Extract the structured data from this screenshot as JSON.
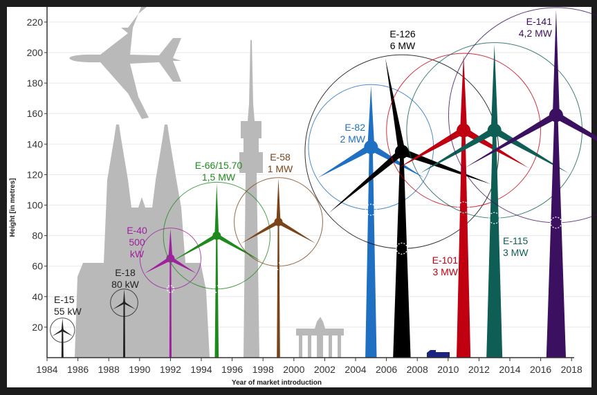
{
  "chart_data": {
    "type": "scatter",
    "title": "",
    "xlabel": "Year of market introduction",
    "ylabel": "Height [in metres]",
    "xlim": [
      1984,
      2018
    ],
    "ylim": [
      0,
      230
    ],
    "x_ticks": [
      "1984",
      "1986",
      "1988",
      "1990",
      "1992",
      "1994",
      "1996",
      "1998",
      "2000",
      "2002",
      "2004",
      "2006",
      "2008",
      "2010",
      "2012",
      "2014",
      "2016",
      "2018"
    ],
    "y_ticks": [
      "20",
      "40",
      "60",
      "80",
      "100",
      "120",
      "140",
      "160",
      "180",
      "200",
      "220"
    ],
    "grid": true,
    "series": [
      {
        "name": "E-15",
        "power": "55 kW",
        "year": 1985,
        "hub_height": 18,
        "rotor_diameter": 16,
        "color": "#222222",
        "label": [
          "E-15",
          "55 kW"
        ]
      },
      {
        "name": "E-18",
        "power": "80 kW",
        "year": 1989,
        "hub_height": 36,
        "rotor_diameter": 18,
        "color": "#222222",
        "label": [
          "E-18",
          "80 kW"
        ]
      },
      {
        "name": "E-40",
        "power": "500 kW",
        "year": 1992,
        "hub_height": 65,
        "rotor_diameter": 40,
        "color": "#a0209e",
        "label": [
          "E-40",
          "500",
          "kW"
        ]
      },
      {
        "name": "E-66/15.70",
        "power": "1,5 MW",
        "year": 1995,
        "hub_height": 80,
        "rotor_diameter": 70,
        "color": "#1e8a1e",
        "label": [
          "E-66/15.70",
          "1,5 MW"
        ]
      },
      {
        "name": "E-58",
        "power": "1 MW",
        "year": 1999,
        "hub_height": 89,
        "rotor_diameter": 58,
        "color": "#7a4418",
        "label": [
          "E-58",
          "1 MW"
        ]
      },
      {
        "name": "E-82",
        "power": "2 MW",
        "year": 2005,
        "hub_height": 138,
        "rotor_diameter": 82,
        "color": "#1f6fc2",
        "label": [
          "E-82",
          "2 MW"
        ]
      },
      {
        "name": "E-126",
        "power": "6 MW",
        "year": 2007,
        "hub_height": 135,
        "rotor_diameter": 127,
        "color": "#000000",
        "label": [
          "E-126",
          "6 MW"
        ]
      },
      {
        "name": "E-101",
        "power": "3 MW",
        "year": 2011,
        "hub_height": 149,
        "rotor_diameter": 101,
        "color": "#c00010",
        "label": [
          "E-101",
          "3 MW"
        ]
      },
      {
        "name": "E-115",
        "power": "3 MW",
        "year": 2013,
        "hub_height": 149,
        "rotor_diameter": 115,
        "color": "#0e5e55",
        "label": [
          "E-115",
          "3 MW"
        ]
      },
      {
        "name": "E-141",
        "power": "4,2 MW",
        "year": 2017,
        "hub_height": 159,
        "rotor_diameter": 141,
        "color": "#3c1060",
        "label": [
          "E-141",
          "4,2 MW"
        ]
      }
    ]
  }
}
